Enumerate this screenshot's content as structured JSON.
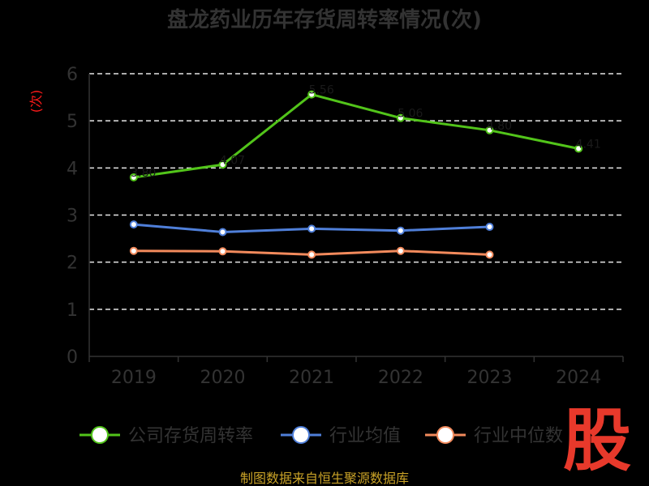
{
  "chart_data": {
    "type": "line",
    "title": "盘龙药业历年存货周转率情况(次)",
    "ylabel": "(次)",
    "xlabel": "",
    "categories": [
      "2019",
      "2020",
      "2021",
      "2022",
      "2023",
      "2024"
    ],
    "ylim": [
      0,
      6
    ],
    "yticks": [
      0,
      1,
      2,
      3,
      4,
      5,
      6
    ],
    "grid": true,
    "legend_position": "bottom",
    "series": [
      {
        "name": "公司存货周转率",
        "color": "#52c41a",
        "values": [
          3.8,
          4.07,
          5.56,
          5.06,
          4.8,
          4.41
        ],
        "data_labels": [
          "3.80",
          "4.07",
          "5.56",
          "5.06",
          "4.80",
          "4.41"
        ]
      },
      {
        "name": "行业均值",
        "color": "#4f7fd9",
        "values": [
          2.8,
          2.64,
          2.71,
          2.67,
          2.75,
          null
        ]
      },
      {
        "name": "行业中位数",
        "color": "#f28a5c",
        "values": [
          2.24,
          2.23,
          2.16,
          2.24,
          2.16,
          null
        ]
      }
    ]
  },
  "legend_labels": [
    "公司存货周转率",
    "行业均值",
    "行业中位数"
  ],
  "source_text": "制图数据来自恒生聚源数据库",
  "logo_text": "股"
}
